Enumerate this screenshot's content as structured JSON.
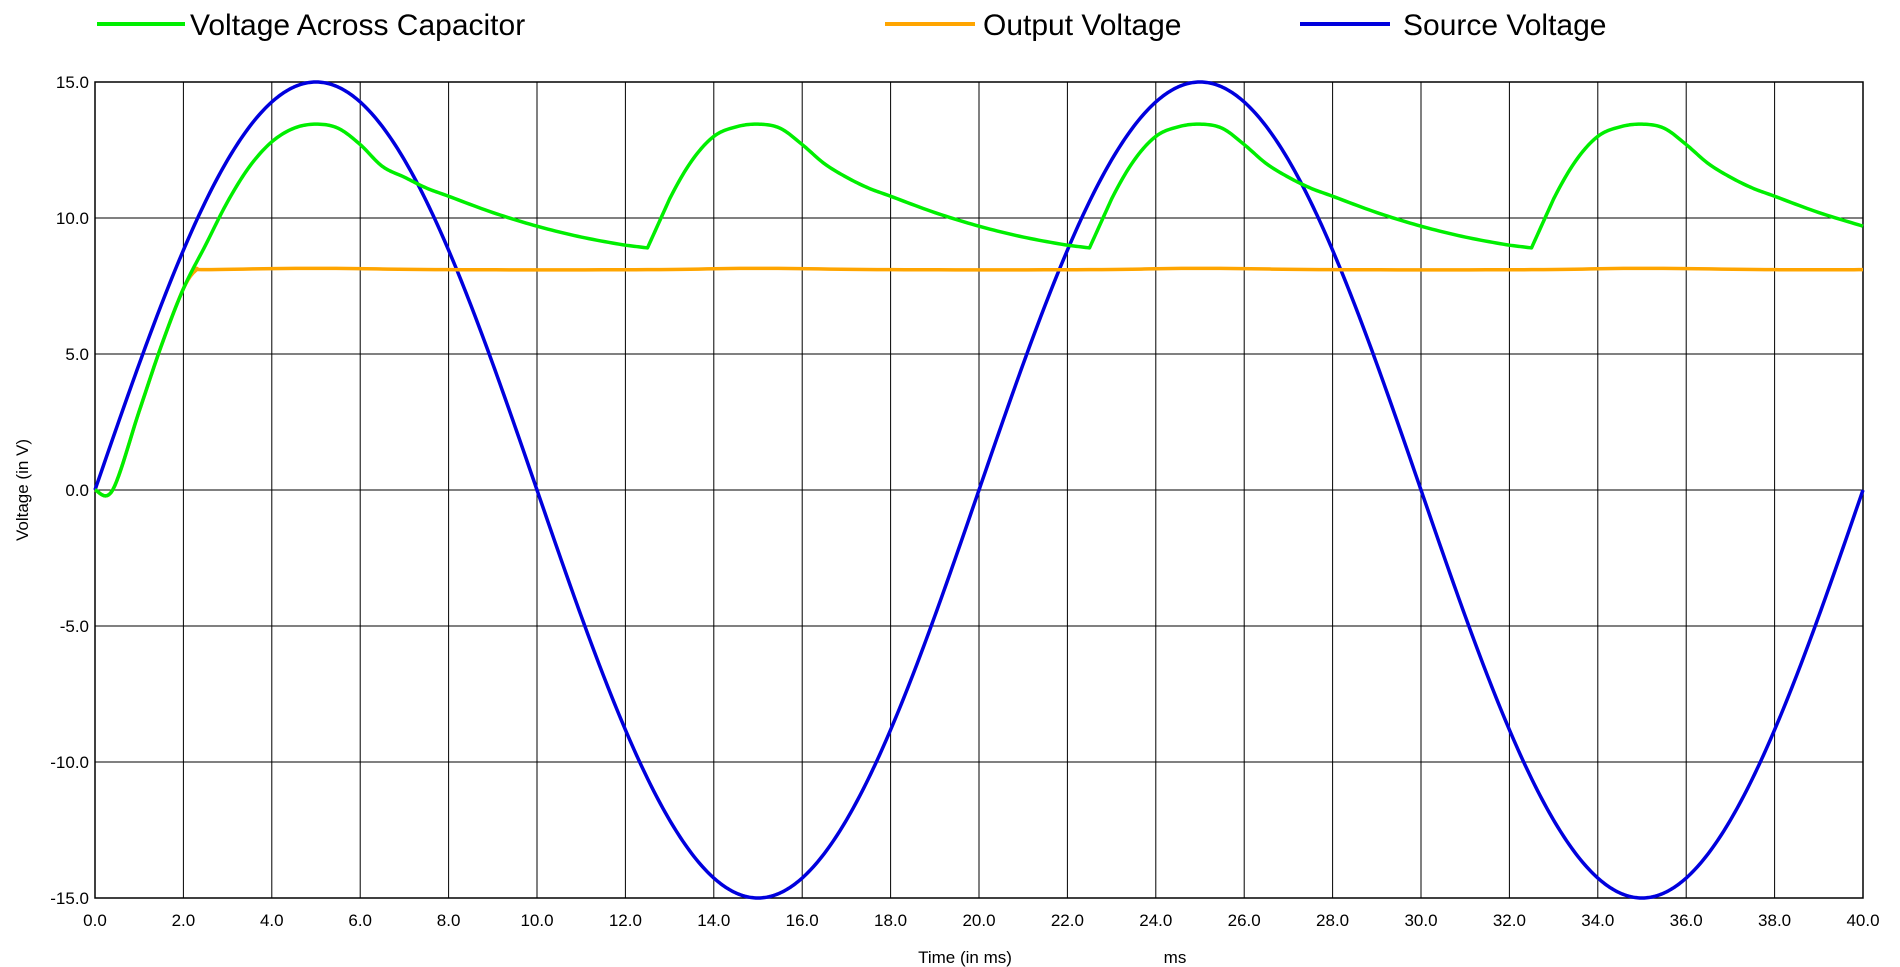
{
  "chart_data": {
    "type": "line",
    "xlabel": "Time (in ms)",
    "xunit": "ms",
    "ylabel": "Voltage (in V)",
    "xlim": [
      0,
      40
    ],
    "ylim": [
      -15,
      15
    ],
    "xticks": [
      "0.0",
      "2.0",
      "4.0",
      "6.0",
      "8.0",
      "10.0",
      "12.0",
      "14.0",
      "16.0",
      "18.0",
      "20.0",
      "22.0",
      "24.0",
      "26.0",
      "28.0",
      "30.0",
      "32.0",
      "34.0",
      "36.0",
      "38.0",
      "40.0"
    ],
    "yticks": [
      "15.0",
      "10.0",
      "5.0",
      "0.0",
      "-5.0",
      "-10.0",
      "-15.0"
    ],
    "grid": true,
    "legend_position": "top",
    "series": [
      {
        "name": "Voltage Across Capacitor",
        "color": "#00ee00",
        "x": [
          0,
          0.4,
          1.0,
          1.5,
          2.0,
          2.5,
          3.0,
          3.5,
          4.0,
          4.5,
          5.0,
          5.5,
          6.0,
          6.5,
          7.0,
          7.5,
          8.0,
          9.0,
          10.0,
          11.0,
          12.0,
          12.5,
          13.0,
          13.5,
          14.0,
          14.5,
          15.0,
          15.5,
          16.0,
          16.5,
          17.0,
          17.5,
          18.0,
          19.0,
          20.0,
          21.0,
          22.0,
          22.5,
          23.0,
          23.5,
          24.0,
          24.5,
          25.0,
          25.5,
          26.0,
          26.5,
          27.0,
          27.5,
          28.0,
          29.0,
          30.0,
          31.0,
          32.0,
          32.5,
          33.0,
          33.5,
          34.0,
          34.5,
          35.0,
          35.5,
          36.0,
          36.5,
          37.0,
          37.5,
          38.0,
          39.0,
          40.0
        ],
        "values": [
          0,
          0,
          2.9,
          5.3,
          7.4,
          9.0,
          10.6,
          11.9,
          12.8,
          13.3,
          13.45,
          13.3,
          12.7,
          11.9,
          11.5,
          11.1,
          10.8,
          10.2,
          9.7,
          9.3,
          9.0,
          8.9,
          10.7,
          12.1,
          13.0,
          13.35,
          13.45,
          13.3,
          12.7,
          12.0,
          11.5,
          11.1,
          10.8,
          10.2,
          9.7,
          9.3,
          9.0,
          8.9,
          10.7,
          12.1,
          13.0,
          13.35,
          13.45,
          13.3,
          12.7,
          12.0,
          11.5,
          11.1,
          10.8,
          10.2,
          9.7,
          9.3,
          9.0,
          8.9,
          10.7,
          12.1,
          13.0,
          13.35,
          13.45,
          13.3,
          12.7,
          12.0,
          11.5,
          11.1,
          10.8,
          10.2,
          9.7
        ]
      },
      {
        "name": "Output Voltage",
        "color": "#ffa500",
        "x": [
          0,
          0.4,
          1.0,
          1.5,
          2.0,
          2.3,
          2.5,
          5.0,
          8.0,
          12.5,
          15.0,
          18.0,
          22.5,
          25.0,
          28.0,
          32.5,
          35.0,
          38.0,
          40.0
        ],
        "values": [
          0,
          0,
          2.9,
          5.3,
          7.4,
          8.1,
          8.1,
          8.15,
          8.1,
          8.1,
          8.15,
          8.1,
          8.1,
          8.15,
          8.1,
          8.1,
          8.15,
          8.1,
          8.1
        ]
      },
      {
        "name": "Source Voltage",
        "color": "#0000dd",
        "function": "15*sin(2*pi*t/20)",
        "amplitude": 15,
        "period_ms": 20,
        "x": [
          0,
          2.5,
          5.0,
          7.5,
          10.0,
          12.5,
          15.0,
          17.5,
          20.0,
          22.5,
          25.0,
          27.5,
          30.0,
          32.5,
          35.0,
          37.5,
          40.0
        ],
        "values": [
          0,
          10.61,
          15.0,
          10.61,
          0,
          -10.61,
          -15.0,
          -10.61,
          0,
          10.61,
          15.0,
          10.61,
          0,
          -10.61,
          -15.0,
          -10.61,
          0
        ]
      }
    ]
  }
}
